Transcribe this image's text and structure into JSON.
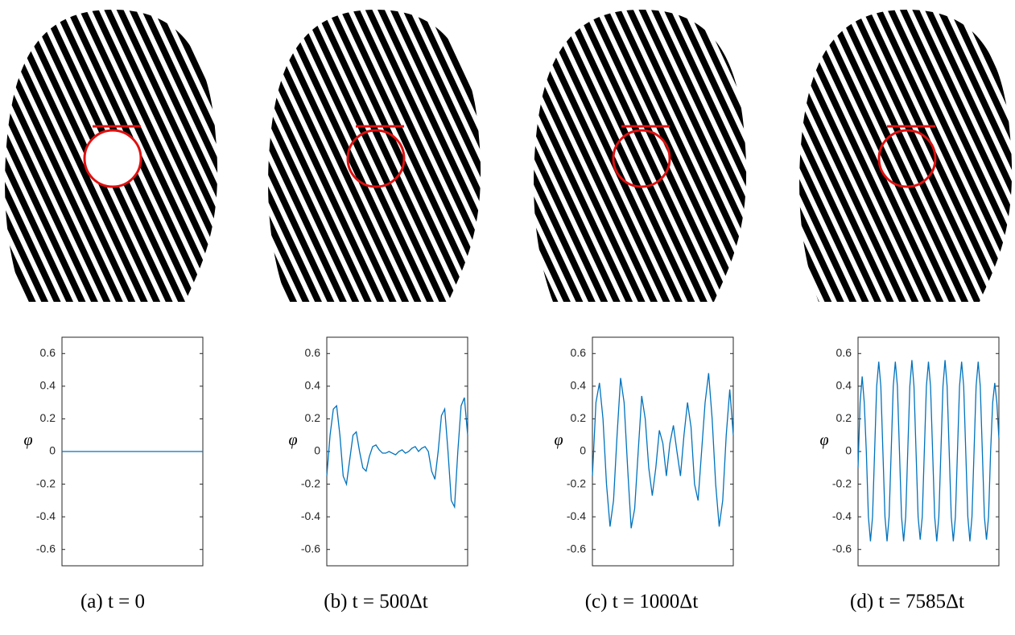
{
  "chart_data": [
    {
      "type": "line",
      "caption": "(a) t = 0",
      "ylabel": "φ",
      "ylim": [
        -0.7,
        0.7
      ],
      "yticks": [
        -0.6,
        -0.4,
        -0.2,
        0,
        0.2,
        0.4,
        0.6
      ],
      "color": "#0072bd",
      "values": [
        0,
        0
      ]
    },
    {
      "type": "line",
      "caption": "(b) t = 500Δt",
      "ylabel": "φ",
      "ylim": [
        -0.7,
        0.7
      ],
      "yticks": [
        -0.6,
        -0.4,
        -0.2,
        0,
        0.2,
        0.4,
        0.6
      ],
      "color": "#0072bd",
      "values": [
        -0.15,
        0.1,
        0.26,
        0.28,
        0.1,
        -0.15,
        -0.2,
        -0.05,
        0.1,
        0.12,
        0,
        -0.1,
        -0.12,
        -0.03,
        0.03,
        0.04,
        0.01,
        -0.01,
        -0.01,
        0,
        -0.01,
        -0.02,
        0,
        0.01,
        -0.01,
        0,
        0.02,
        0.03,
        0,
        0.02,
        0.03,
        0,
        -0.12,
        -0.17,
        0,
        0.22,
        0.26,
        0,
        -0.3,
        -0.34,
        0,
        0.28,
        0.33,
        0.1
      ]
    },
    {
      "type": "line",
      "caption": "(c) t = 1000Δt",
      "ylabel": "φ",
      "ylim": [
        -0.7,
        0.7
      ],
      "yticks": [
        -0.6,
        -0.4,
        -0.2,
        0,
        0.2,
        0.4,
        0.6
      ],
      "color": "#0072bd",
      "values": [
        -0.15,
        0.3,
        0.42,
        0.2,
        -0.2,
        -0.46,
        -0.3,
        0.1,
        0.45,
        0.3,
        -0.1,
        -0.47,
        -0.35,
        0,
        0.34,
        0.2,
        -0.1,
        -0.27,
        -0.1,
        0.13,
        0.05,
        -0.15,
        0.05,
        0.16,
        0,
        -0.15,
        0.1,
        0.3,
        0.15,
        -0.2,
        -0.3,
        0,
        0.3,
        0.48,
        0.2,
        -0.2,
        -0.46,
        -0.3,
        0.1,
        0.38,
        0.1
      ]
    },
    {
      "type": "line",
      "caption": "(d) t = 7585Δt",
      "ylabel": "φ",
      "ylim": [
        -0.7,
        0.7
      ],
      "yticks": [
        -0.6,
        -0.4,
        -0.2,
        0,
        0.2,
        0.4,
        0.6
      ],
      "color": "#0072bd",
      "values": [
        -0.1,
        0.3,
        0.46,
        0.3,
        0,
        -0.4,
        -0.55,
        -0.4,
        0,
        0.4,
        0.55,
        0.4,
        0,
        -0.4,
        -0.55,
        -0.4,
        0,
        0.4,
        0.55,
        0.4,
        0,
        -0.4,
        -0.55,
        -0.4,
        0,
        0.4,
        0.56,
        0.4,
        0,
        -0.4,
        -0.54,
        -0.4,
        0,
        0.4,
        0.55,
        0.4,
        0,
        -0.4,
        -0.55,
        -0.4,
        0,
        0.4,
        0.56,
        0.4,
        0,
        -0.4,
        -0.55,
        -0.4,
        0,
        0.4,
        0.55,
        0.4,
        0,
        -0.4,
        -0.55,
        -0.4,
        0,
        0.4,
        0.55,
        0.4,
        0,
        -0.4,
        -0.54,
        -0.4,
        0,
        0.3,
        0.42,
        0.3,
        0.08
      ]
    }
  ]
}
